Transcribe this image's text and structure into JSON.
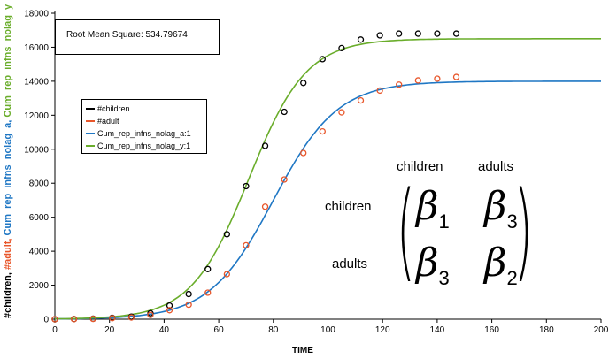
{
  "chart_data": {
    "type": "line",
    "xlabel": "TIME",
    "ylabel_parts": [
      {
        "text": "#children, ",
        "color": "#000000"
      },
      {
        "text": "#adult, ",
        "color": "#e8562a"
      },
      {
        "text": "Cum_rep_infns_nolag_a, ",
        "color": "#1f77c4"
      },
      {
        "text": "Cum_rep_infns_nolag_y",
        "color": "#6aad2b"
      }
    ],
    "xlim": [
      0,
      200
    ],
    "ylim": [
      0,
      18000
    ],
    "xticks": [
      0,
      20,
      40,
      60,
      80,
      100,
      120,
      140,
      160,
      180,
      200
    ],
    "yticks": [
      0,
      2000,
      4000,
      6000,
      8000,
      10000,
      12000,
      14000,
      16000,
      18000
    ],
    "annotation": "Root Mean Square: 534.79674",
    "legend_position": "upper-left",
    "series": [
      {
        "name": "#children",
        "kind": "points",
        "color": "#000000",
        "x": [
          0,
          7,
          14,
          21,
          28,
          35,
          42,
          49,
          56,
          63,
          70,
          77,
          84,
          91,
          98,
          105,
          112,
          119,
          126,
          133,
          140,
          147
        ],
        "y": [
          0,
          10,
          30,
          80,
          150,
          350,
          800,
          1480,
          2950,
          5000,
          7830,
          10200,
          12200,
          13900,
          15300,
          15950,
          16450,
          16700,
          16800,
          16800,
          16800,
          16800
        ]
      },
      {
        "name": "#adult",
        "kind": "points",
        "color": "#e8562a",
        "x": [
          0,
          7,
          14,
          21,
          28,
          35,
          42,
          49,
          56,
          63,
          70,
          77,
          84,
          91,
          98,
          105,
          112,
          119,
          126,
          133,
          140,
          147
        ],
        "y": [
          0,
          5,
          20,
          60,
          100,
          250,
          530,
          850,
          1560,
          2650,
          4350,
          6620,
          8220,
          9780,
          11050,
          12170,
          12870,
          13450,
          13800,
          14050,
          14150,
          14250
        ]
      },
      {
        "name": "Cum_rep_infns_nolag_a:1",
        "kind": "curve",
        "color": "#1f77c4",
        "asymptote": 14000,
        "midpoint": 80,
        "rate": 0.085
      },
      {
        "name": "Cum_rep_infns_nolag_y:1",
        "kind": "curve",
        "color": "#6aad2b",
        "asymptote": 16500,
        "midpoint": 71,
        "rate": 0.095
      }
    ]
  },
  "matrix": {
    "col_headers": [
      "children",
      "adults"
    ],
    "row_headers": [
      "children",
      "adults"
    ],
    "cells": [
      {
        "symbol": "β",
        "sub": "1"
      },
      {
        "symbol": "β",
        "sub": "3"
      },
      {
        "symbol": "β",
        "sub": "3"
      },
      {
        "symbol": "β",
        "sub": "2"
      }
    ]
  }
}
